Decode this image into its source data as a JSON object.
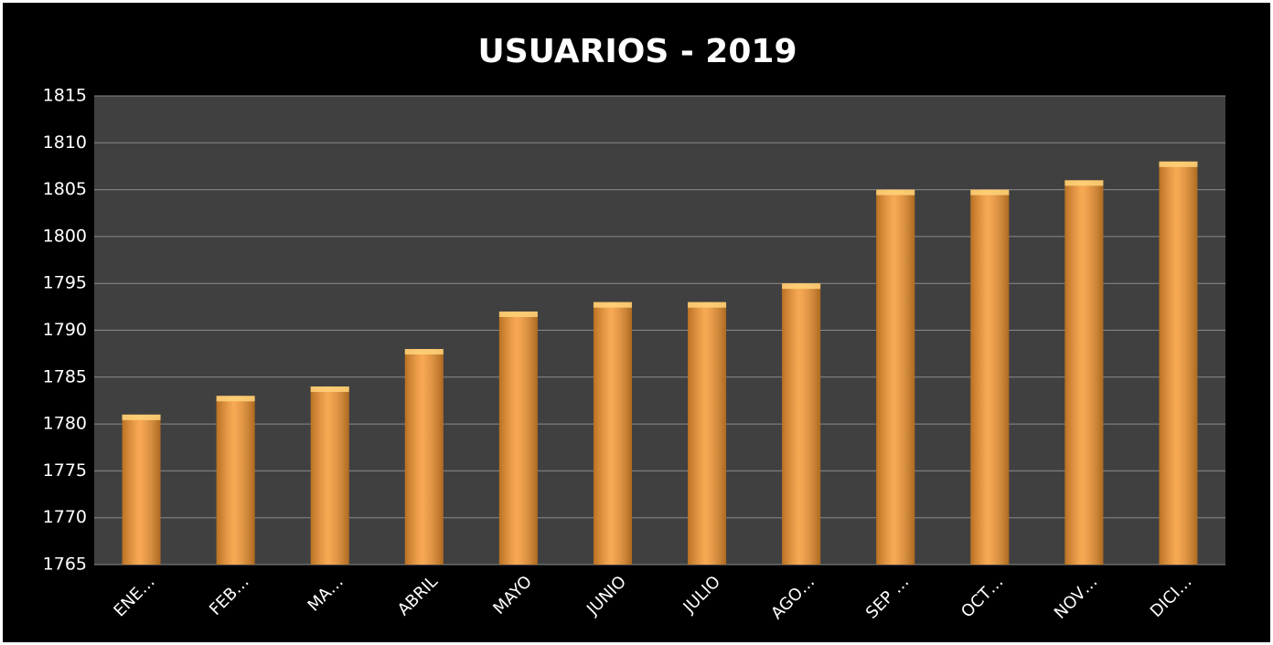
{
  "chart_data": {
    "type": "bar",
    "title": "USUARIOS - 2019",
    "categories": [
      "ENE…",
      "FEB…",
      "MA…",
      "ABRIL",
      "MAYO",
      "JUNIO",
      "JULIO",
      "AGO…",
      "SEP …",
      "OCT…",
      "NOV…",
      "DICI…"
    ],
    "values": [
      1781,
      1783,
      1784,
      1788,
      1792,
      1793,
      1793,
      1795,
      1805,
      1805,
      1806,
      1808
    ],
    "color": "#f7962e",
    "ylim": [
      1765,
      1815
    ],
    "yticks": [
      1765,
      1770,
      1775,
      1780,
      1785,
      1790,
      1795,
      1800,
      1805,
      1810,
      1815
    ],
    "grid": true
  }
}
